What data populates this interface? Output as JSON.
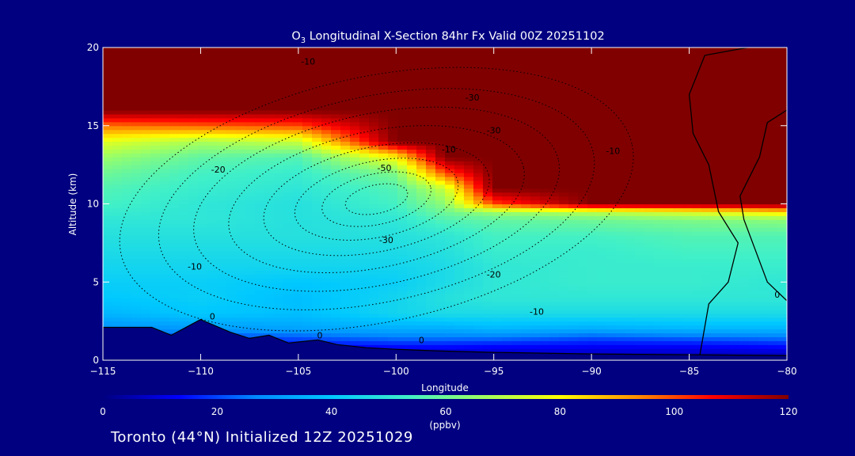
{
  "chart_data": {
    "type": "heatmap",
    "title_parts": [
      "O",
      "3",
      " Longitudinal X-Section 84hr  Fx Valid 00Z 20251102"
    ],
    "xlabel": "Longitude",
    "ylabel": "Altitude (km)",
    "xlim": [
      -115,
      -80
    ],
    "ylim": [
      0,
      20
    ],
    "xticks": [
      -115,
      -110,
      -105,
      -100,
      -95,
      -90,
      -85,
      -80
    ],
    "xtick_labels": [
      "−115",
      "−110",
      "−105",
      "−100",
      "−95",
      "−90",
      "−85",
      "−80"
    ],
    "yticks": [
      0,
      5,
      10,
      15,
      20
    ],
    "ytick_labels": [
      "0",
      "5",
      "10",
      "15",
      "20"
    ],
    "colorbar": {
      "label": "(ppbv)",
      "range": [
        0,
        120
      ],
      "ticks": [
        0,
        20,
        40,
        60,
        80,
        100,
        120
      ],
      "tick_labels": [
        "0",
        "20",
        "40",
        "60",
        "80",
        "100",
        "120"
      ],
      "colors": [
        "#000080",
        "#0000ff",
        "#0088ff",
        "#00c8ff",
        "#40f0c8",
        "#a0ff60",
        "#ffff00",
        "#ff9000",
        "#ff0000",
        "#800000"
      ]
    },
    "ozone_field": {
      "x": [
        -115,
        -110,
        -105,
        -100,
        -97.5,
        -95,
        -90,
        -85,
        -80
      ],
      "y": [
        0,
        0.5,
        1,
        1.5,
        2,
        3,
        4,
        5,
        6,
        7,
        8,
        9,
        9.5,
        10,
        11,
        12,
        13,
        14,
        15,
        16,
        17,
        18,
        20
      ],
      "z": [
        [
          3,
          3,
          3,
          3,
          3,
          3,
          3,
          3,
          3
        ],
        [
          8,
          8,
          8,
          8,
          8,
          8,
          8,
          8,
          8
        ],
        [
          14,
          14,
          15,
          16,
          16,
          15,
          14,
          14,
          16
        ],
        [
          20,
          20,
          22,
          26,
          26,
          26,
          22,
          24,
          26
        ],
        [
          28,
          30,
          32,
          34,
          34,
          36,
          34,
          36,
          36
        ],
        [
          36,
          40,
          38,
          44,
          46,
          46,
          46,
          46,
          46
        ],
        [
          40,
          42,
          38,
          44,
          48,
          50,
          50,
          50,
          50
        ],
        [
          42,
          42,
          40,
          42,
          46,
          50,
          52,
          52,
          50
        ],
        [
          44,
          44,
          44,
          44,
          46,
          50,
          52,
          52,
          52
        ],
        [
          46,
          46,
          46,
          46,
          48,
          52,
          52,
          54,
          54
        ],
        [
          48,
          48,
          48,
          48,
          50,
          54,
          54,
          56,
          56
        ],
        [
          50,
          50,
          48,
          50,
          56,
          58,
          60,
          62,
          64
        ],
        [
          52,
          50,
          48,
          52,
          60,
          66,
          70,
          76,
          84
        ],
        [
          54,
          50,
          48,
          54,
          64,
          100,
          120,
          120,
          120
        ],
        [
          56,
          52,
          50,
          56,
          72,
          120,
          120,
          120,
          120
        ],
        [
          60,
          54,
          52,
          62,
          100,
          120,
          120,
          120,
          120
        ],
        [
          66,
          58,
          56,
          80,
          120,
          120,
          120,
          120,
          120
        ],
        [
          76,
          68,
          72,
          120,
          120,
          120,
          120,
          120,
          120
        ],
        [
          96,
          98,
          100,
          120,
          120,
          120,
          120,
          120,
          120
        ],
        [
          120,
          120,
          120,
          120,
          120,
          120,
          120,
          120,
          120
        ],
        [
          120,
          120,
          120,
          120,
          120,
          120,
          120,
          120,
          120
        ],
        [
          120,
          120,
          120,
          120,
          120,
          120,
          120,
          120,
          120
        ],
        [
          120,
          120,
          120,
          120,
          120,
          120,
          120,
          120,
          120
        ]
      ]
    },
    "terrain": {
      "x": [
        -115,
        -112.5,
        -111.5,
        -110,
        -108.5,
        -107.5,
        -106.5,
        -105.5,
        -104,
        -103,
        -101.5,
        -100,
        -98,
        -95,
        -90,
        -85,
        -80
      ],
      "y": [
        2.1,
        2.1,
        1.6,
        2.6,
        1.8,
        1.4,
        1.6,
        1.1,
        1.3,
        1.0,
        0.8,
        0.7,
        0.6,
        0.5,
        0.4,
        0.35,
        0.3
      ]
    },
    "contour_labels": [
      {
        "text": "-10",
        "lon": -110.3,
        "lat": 5.8
      },
      {
        "text": "-20",
        "lon": -109.1,
        "lat": 12.0
      },
      {
        "text": "-30",
        "lon": -100.5,
        "lat": 7.5
      },
      {
        "text": "-50",
        "lon": -100.6,
        "lat": 12.1
      },
      {
        "text": "-20",
        "lon": -95.0,
        "lat": 5.3
      },
      {
        "text": "-10",
        "lon": -92.8,
        "lat": 2.9
      },
      {
        "text": "-10",
        "lon": -104.5,
        "lat": 18.9
      },
      {
        "text": "-30",
        "lon": -96.1,
        "lat": 16.6
      },
      {
        "text": "-30",
        "lon": -95.0,
        "lat": 14.5
      },
      {
        "text": "-10",
        "lon": -97.3,
        "lat": 13.3
      },
      {
        "text": "-10",
        "lon": -88.9,
        "lat": 13.2
      },
      {
        "text": "0",
        "lon": -109.4,
        "lat": 2.6
      },
      {
        "text": "0",
        "lon": -103.9,
        "lat": 1.4
      },
      {
        "text": "0",
        "lon": -98.7,
        "lat": 1.1
      },
      {
        "text": "0",
        "lon": -80.5,
        "lat": 4.0
      }
    ]
  },
  "caption": "Toronto (44°N) Initialized 12Z 20251029"
}
